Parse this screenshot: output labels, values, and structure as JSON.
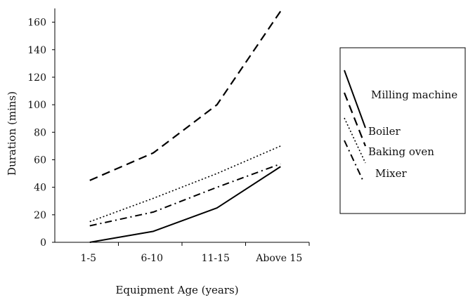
{
  "chart_data": {
    "type": "line",
    "title": "",
    "xlabel": "Equipment Age (years)",
    "ylabel": "Duration (mins)",
    "categories": [
      "1-5",
      "6-10",
      "11-15",
      "Above 15"
    ],
    "y_tick_labels": [
      "0",
      "20",
      "40",
      "60",
      "80",
      "100",
      "120",
      "140",
      "160"
    ],
    "ylim": [
      0,
      170
    ],
    "grid": false,
    "legend_position": "right",
    "series": [
      {
        "name": "Milling machine",
        "values": [
          0,
          8,
          25,
          55
        ],
        "style": "solid",
        "color": "#000000"
      },
      {
        "name": "Boiler",
        "values": [
          45,
          65,
          100,
          168
        ],
        "style": "dashed",
        "color": "#000000"
      },
      {
        "name": "Baking oven",
        "values": [
          15,
          32,
          50,
          70
        ],
        "style": "dotted",
        "color": "#000000"
      },
      {
        "name": "Mixer",
        "values": [
          12,
          22,
          40,
          57
        ],
        "style": "dash-dot",
        "color": "#000000"
      }
    ]
  }
}
